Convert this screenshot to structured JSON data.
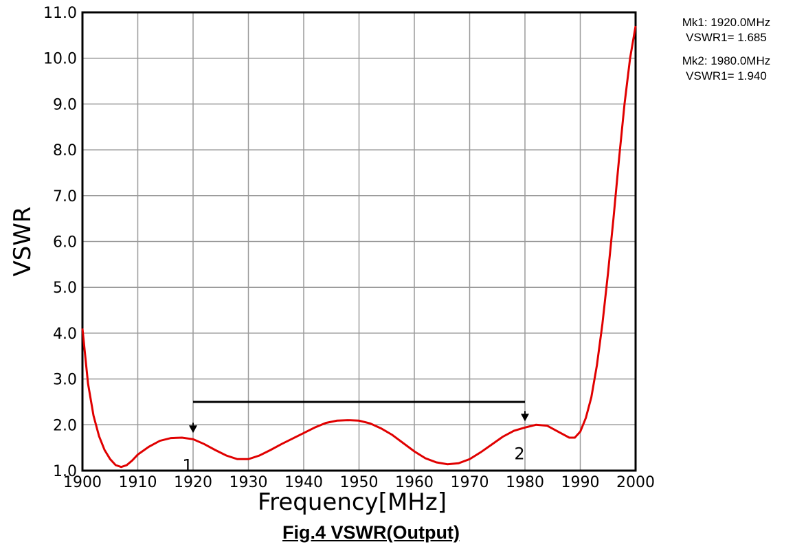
{
  "caption": "Fig.4 VSWR(Output)",
  "readouts": [
    {
      "line1": "Mk1: 1920.0MHz",
      "line2": "VSWR1= 1.685"
    },
    {
      "line1": "Mk2: 1980.0MHz",
      "line2": "VSWR1= 1.940"
    }
  ],
  "colors": {
    "trace": "#e00000",
    "grid": "#9a9a9a",
    "frame": "#000000"
  },
  "chart_data": {
    "type": "line",
    "title": "",
    "xlabel": "Frequency[MHz]",
    "ylabel": "VSWR",
    "xlim": [
      1900,
      2000
    ],
    "ylim": [
      1.0,
      11.0
    ],
    "grid": true,
    "x_ticks": [
      1900,
      1910,
      1920,
      1930,
      1940,
      1950,
      1960,
      1970,
      1980,
      1990,
      2000
    ],
    "x_tick_labels": [
      "1900",
      "1910",
      "1920",
      "1930",
      "1940",
      "1950",
      "1960",
      "1970",
      "1980",
      "1990",
      "2000"
    ],
    "y_ticks": [
      1,
      2,
      3,
      4,
      5,
      6,
      7,
      8,
      9,
      10,
      11
    ],
    "y_tick_labels": [
      "1.0",
      "2.0",
      "3.0",
      "4.0",
      "5.0",
      "6.0",
      "7.0",
      "8.0",
      "9.0",
      "10.0",
      "11.0"
    ],
    "series": [
      {
        "x": [
          1900,
          1901,
          1902,
          1903,
          1904,
          1905,
          1906,
          1907,
          1908,
          1909,
          1910,
          1912,
          1914,
          1916,
          1918,
          1920,
          1922,
          1924,
          1926,
          1928,
          1930,
          1932,
          1934,
          1936,
          1938,
          1940,
          1942,
          1944,
          1946,
          1948,
          1950,
          1952,
          1954,
          1956,
          1958,
          1960,
          1962,
          1964,
          1966,
          1968,
          1970,
          1972,
          1974,
          1976,
          1978,
          1980,
          1982,
          1984,
          1986,
          1988,
          1989,
          1990,
          1991,
          1992,
          1993,
          1994,
          1995,
          1996,
          1997,
          1998,
          1999,
          2000
        ],
        "y": [
          4.1,
          2.9,
          2.2,
          1.75,
          1.45,
          1.25,
          1.12,
          1.08,
          1.12,
          1.22,
          1.35,
          1.52,
          1.65,
          1.71,
          1.72,
          1.685,
          1.58,
          1.45,
          1.33,
          1.25,
          1.25,
          1.33,
          1.45,
          1.58,
          1.7,
          1.82,
          1.94,
          2.04,
          2.09,
          2.1,
          2.09,
          2.03,
          1.92,
          1.78,
          1.6,
          1.42,
          1.27,
          1.18,
          1.14,
          1.16,
          1.25,
          1.4,
          1.57,
          1.74,
          1.87,
          1.94,
          2.0,
          1.98,
          1.85,
          1.72,
          1.72,
          1.85,
          2.15,
          2.6,
          3.3,
          4.2,
          5.3,
          6.5,
          7.8,
          9.0,
          10.0,
          10.7
        ]
      }
    ],
    "markers": [
      {
        "label": "1",
        "x": 1920,
        "y": 1.685
      },
      {
        "label": "2",
        "x": 1980,
        "y": 1.94
      }
    ],
    "annotations": [
      {
        "type": "hline",
        "x_from": 1920,
        "x_to": 1980,
        "y": 2.5
      }
    ]
  }
}
